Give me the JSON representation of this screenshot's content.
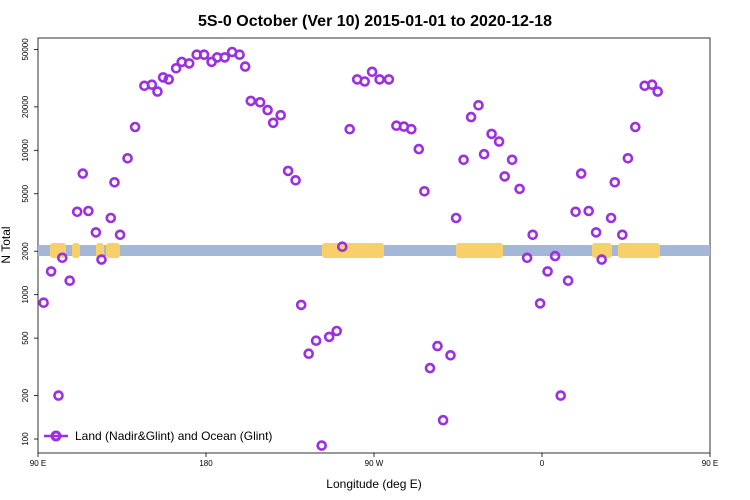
{
  "chart_data": {
    "type": "scatter",
    "title": "5S-0 October (Ver 10)   2015-01-01 to 2020-12-18",
    "xlabel": "Longitude (deg E)",
    "ylabel": "N Total",
    "y_scale": "log",
    "xlim": [
      90,
      450
    ],
    "ylim": [
      80,
      60000
    ],
    "x_ticks": [
      {
        "value": 90,
        "label": "90 E"
      },
      {
        "value": 180,
        "label": "180"
      },
      {
        "value": 270,
        "label": "90 W"
      },
      {
        "value": 360,
        "label": "0"
      },
      {
        "value": 450,
        "label": "90 E"
      }
    ],
    "y_ticks": [
      {
        "value": 100,
        "label": "100"
      },
      {
        "value": 200,
        "label": "200"
      },
      {
        "value": 500,
        "label": "500"
      },
      {
        "value": 1000,
        "label": "1000"
      },
      {
        "value": 2000,
        "label": "2000"
      },
      {
        "value": 5000,
        "label": "5000"
      },
      {
        "value": 10000,
        "label": "10000"
      },
      {
        "value": 20000,
        "label": "20000"
      },
      {
        "value": 50000,
        "label": "50000"
      }
    ],
    "grid": false,
    "legend_position": "bottom-left",
    "series": [
      {
        "name": "Land (Nadir&Glint) and Ocean (Glint)",
        "color": "#9b30e0",
        "marker": "open-circle",
        "points": [
          [
            93,
            880
          ],
          [
            97,
            1450
          ],
          [
            101,
            200
          ],
          [
            103,
            1800
          ],
          [
            107,
            1250
          ],
          [
            111,
            3750
          ],
          [
            114,
            6900
          ],
          [
            117,
            3800
          ],
          [
            121,
            2700
          ],
          [
            124,
            1750
          ],
          [
            129,
            3400
          ],
          [
            131,
            6000
          ],
          [
            134,
            2600
          ],
          [
            138,
            8800
          ],
          [
            142,
            14500
          ],
          [
            147,
            28000
          ],
          [
            151,
            28500
          ],
          [
            154,
            25500
          ],
          [
            157,
            32000
          ],
          [
            160,
            31000
          ],
          [
            164,
            37000
          ],
          [
            167,
            41000
          ],
          [
            171,
            40000
          ],
          [
            175,
            46000
          ],
          [
            179,
            46000
          ],
          [
            183,
            41000
          ],
          [
            186,
            44000
          ],
          [
            190,
            44000
          ],
          [
            194,
            48000
          ],
          [
            198,
            46000
          ],
          [
            201,
            38000
          ],
          [
            204,
            22000
          ],
          [
            209,
            21500
          ],
          [
            213,
            19000
          ],
          [
            216,
            15500
          ],
          [
            220,
            17500
          ],
          [
            224,
            7200
          ],
          [
            228,
            6200
          ],
          [
            231,
            850
          ],
          [
            235,
            390
          ],
          [
            239,
            480
          ],
          [
            242,
            90
          ],
          [
            246,
            510
          ],
          [
            250,
            560
          ],
          [
            253,
            2150
          ],
          [
            257,
            14000
          ],
          [
            261,
            31000
          ],
          [
            265,
            30000
          ],
          [
            269,
            35000
          ],
          [
            273,
            31000
          ],
          [
            278,
            31000
          ],
          [
            282,
            14800
          ],
          [
            286,
            14600
          ],
          [
            290,
            14000
          ],
          [
            294,
            10200
          ],
          [
            297,
            5200
          ],
          [
            300,
            310
          ],
          [
            304,
            440
          ],
          [
            307,
            135
          ],
          [
            311,
            380
          ],
          [
            314,
            3400
          ],
          [
            318,
            8600
          ],
          [
            322,
            17000
          ],
          [
            326,
            20500
          ],
          [
            329,
            9400
          ],
          [
            333,
            13000
          ],
          [
            337,
            11500
          ],
          [
            340,
            6600
          ],
          [
            344,
            8600
          ],
          [
            348,
            5400
          ],
          [
            352,
            1800
          ],
          [
            355,
            2600
          ],
          [
            359,
            870
          ],
          [
            363,
            1450
          ],
          [
            367,
            1850
          ],
          [
            370,
            200
          ],
          [
            374,
            1250
          ],
          [
            378,
            3750
          ],
          [
            381,
            6900
          ],
          [
            385,
            3800
          ],
          [
            389,
            2700
          ],
          [
            392,
            1750
          ],
          [
            397,
            3400
          ],
          [
            399,
            6000
          ],
          [
            403,
            2600
          ],
          [
            406,
            8800
          ],
          [
            410,
            14500
          ],
          [
            415,
            28000
          ],
          [
            419,
            28500
          ],
          [
            422,
            25500
          ]
        ]
      }
    ]
  }
}
